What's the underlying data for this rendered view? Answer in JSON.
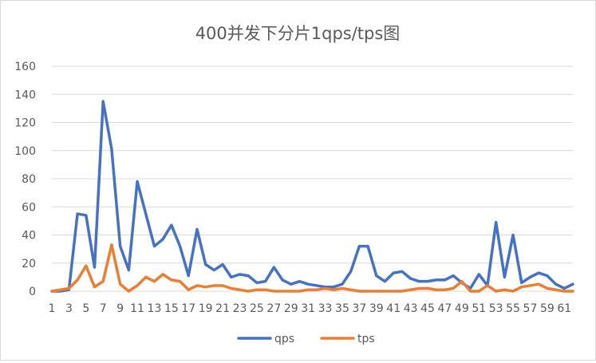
{
  "chart_data": {
    "type": "line",
    "title": "400并发下分片1qps/tps图",
    "xlabel": "",
    "ylabel": "",
    "ylim": [
      0,
      160
    ],
    "yticks": [
      0,
      20,
      40,
      60,
      80,
      100,
      120,
      140,
      160
    ],
    "x": [
      1,
      2,
      3,
      4,
      5,
      6,
      7,
      8,
      9,
      10,
      11,
      12,
      13,
      14,
      15,
      16,
      17,
      18,
      19,
      20,
      21,
      22,
      23,
      24,
      25,
      26,
      27,
      28,
      29,
      30,
      31,
      32,
      33,
      34,
      35,
      36,
      37,
      38,
      39,
      40,
      41,
      42,
      43,
      44,
      45,
      46,
      47,
      48,
      49,
      50,
      51,
      52,
      53,
      54,
      55,
      56,
      57,
      58,
      59,
      60,
      61,
      62
    ],
    "xtick_labels": [
      1,
      3,
      5,
      7,
      9,
      11,
      13,
      15,
      17,
      19,
      21,
      23,
      25,
      27,
      29,
      31,
      33,
      35,
      37,
      39,
      41,
      43,
      45,
      47,
      49,
      51,
      53,
      55,
      57,
      59,
      61
    ],
    "grid": true,
    "legend": "bottom",
    "series": [
      {
        "name": "qps",
        "color": "#4472c4",
        "values": [
          0,
          0,
          1,
          55,
          54,
          17,
          135,
          101,
          32,
          15,
          78,
          55,
          32,
          37,
          47,
          32,
          11,
          44,
          19,
          15,
          19,
          10,
          12,
          11,
          6,
          7,
          17,
          8,
          5,
          7,
          5,
          4,
          3,
          3,
          5,
          14,
          32,
          32,
          11,
          7,
          13,
          14,
          9,
          7,
          7,
          8,
          8,
          11,
          6,
          2,
          12,
          4,
          49,
          10,
          40,
          6,
          10,
          13,
          11,
          5,
          2,
          5
        ]
      },
      {
        "name": "tps",
        "color": "#ed7d31",
        "values": [
          0,
          1,
          2,
          8,
          18,
          3,
          7,
          33,
          5,
          0,
          4,
          10,
          7,
          12,
          8,
          7,
          1,
          4,
          3,
          4,
          4,
          2,
          1,
          0,
          1,
          1,
          0,
          0,
          0,
          0,
          1,
          1,
          2,
          1,
          2,
          1,
          0,
          0,
          0,
          0,
          0,
          0,
          1,
          2,
          2,
          1,
          1,
          2,
          7,
          0,
          0,
          4,
          0,
          1,
          0,
          3,
          4,
          5,
          2,
          1,
          0,
          0
        ]
      }
    ]
  }
}
